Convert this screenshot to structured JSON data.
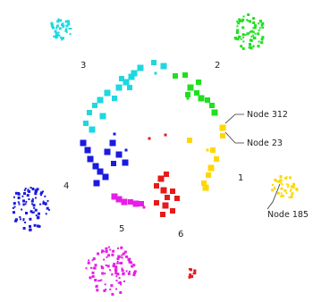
{
  "clusters": [
    {
      "id": "1",
      "label": "1",
      "color": "#ffd700"
    },
    {
      "id": "2",
      "label": "2",
      "color": "#1ee01e"
    },
    {
      "id": "3",
      "label": "3",
      "color": "#1ed7e0"
    },
    {
      "id": "4",
      "label": "4",
      "color": "#1a1ae0"
    },
    {
      "id": "5",
      "label": "5",
      "color": "#e61ee6"
    },
    {
      "id": "6",
      "label": "6",
      "color": "#e61a1a"
    }
  ],
  "annotations": [
    {
      "id": "node-312",
      "text": "Node 312"
    },
    {
      "id": "node-23",
      "text": "Node 23"
    },
    {
      "id": "node-185",
      "text": "Node 185"
    }
  ]
}
